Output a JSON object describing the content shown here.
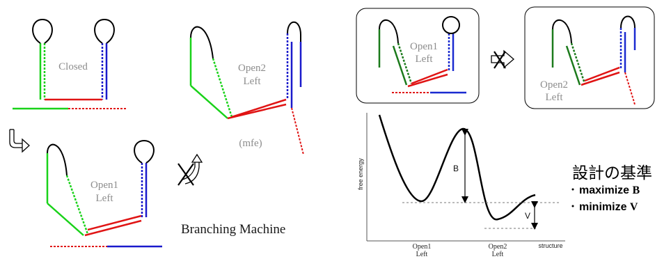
{
  "labels": {
    "closed": "Closed",
    "open2_left_top": "Open2",
    "open2_left_bottom": "Left",
    "mfe": "(mfe)",
    "open1_left_top": "Open1",
    "open1_left_bottom": "Left",
    "caption": "Branching Machine",
    "box1_top": "Open1",
    "box1_bottom": "Left",
    "box2_top": "Open2",
    "box2_bottom": "Left"
  },
  "criteria": {
    "title": "設計の基準",
    "item1_word": "maximize",
    "item1_var": "B",
    "item2_word": "minimize",
    "item2_var": "V"
  },
  "energy_plot": {
    "ylabel": "free energy",
    "xlabel": "structure",
    "tick1_top": "Open1",
    "tick1_bottom": "Left",
    "tick2_top": "Open2",
    "tick2_bottom": "Left",
    "barrier_label": "B",
    "gap_label": "V"
  },
  "colors": {
    "green": "#19d219",
    "blue": "#1a1acc",
    "red": "#e01414",
    "black": "#000000",
    "dark_green": "#1b7a1b",
    "dark_blue": "#1a2ad0"
  },
  "icons": [
    "curved-arrow-icon",
    "crossed-curved-arrow-icon",
    "crossed-arrow-icon"
  ]
}
